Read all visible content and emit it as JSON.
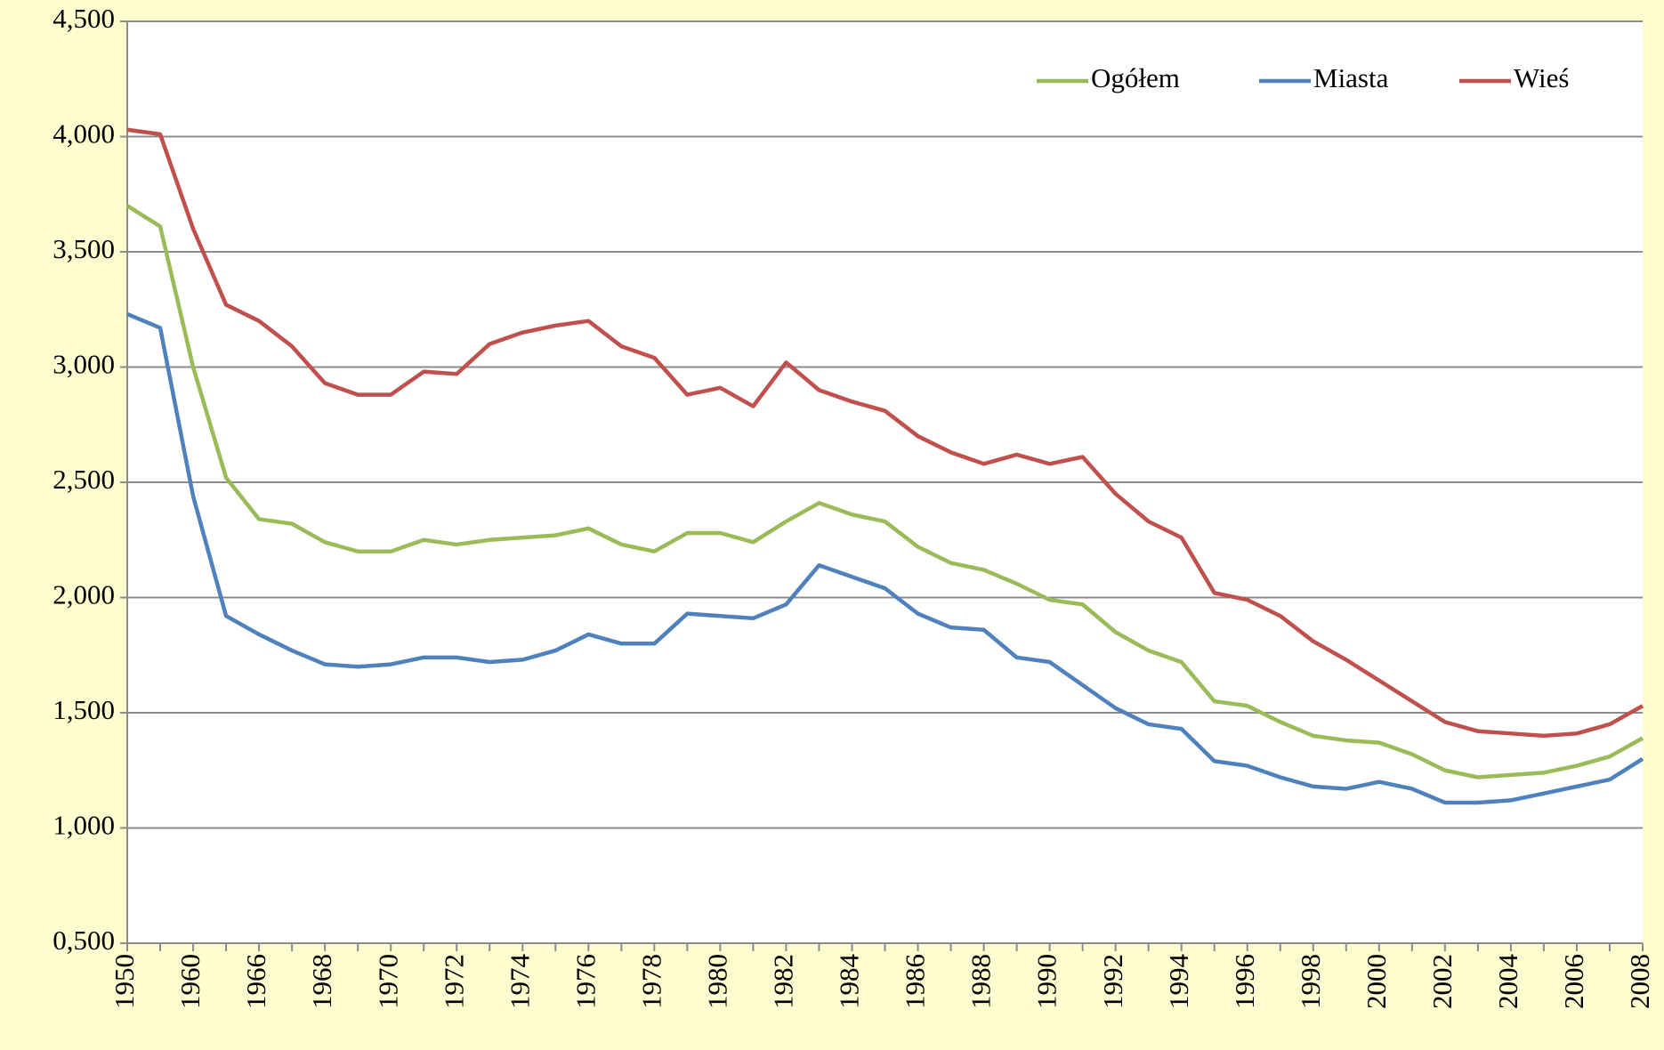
{
  "chart_data": {
    "type": "line",
    "categories": [
      "1950",
      null,
      "1960",
      null,
      "1966",
      null,
      "1968",
      null,
      "1970",
      null,
      "1972",
      null,
      "1974",
      null,
      "1976",
      null,
      "1978",
      null,
      "1980",
      null,
      "1982",
      null,
      "1984",
      null,
      "1986",
      null,
      "1988",
      null,
      "1990",
      null,
      "1992",
      null,
      "1994",
      null,
      "1996",
      null,
      "1998",
      null,
      "2000",
      null,
      "2002",
      null,
      "2004",
      null,
      "2006",
      null,
      "2008"
    ],
    "series": [
      {
        "name": "Ogółem",
        "color": "#9bbb59",
        "values": [
          3.7,
          3.61,
          3.0,
          2.52,
          2.34,
          2.32,
          2.24,
          2.2,
          2.2,
          2.25,
          2.23,
          2.25,
          2.26,
          2.27,
          2.3,
          2.23,
          2.2,
          2.28,
          2.28,
          2.24,
          2.33,
          2.41,
          2.36,
          2.33,
          2.22,
          2.15,
          2.12,
          2.06,
          1.99,
          1.97,
          1.85,
          1.77,
          1.72,
          1.55,
          1.53,
          1.46,
          1.4,
          1.38,
          1.37,
          1.32,
          1.25,
          1.22,
          1.23,
          1.24,
          1.27,
          1.31,
          1.39
        ]
      },
      {
        "name": "Miasta",
        "color": "#4f81bd",
        "values": [
          3.23,
          3.17,
          2.44,
          1.92,
          1.84,
          1.77,
          1.71,
          1.7,
          1.71,
          1.74,
          1.74,
          1.72,
          1.73,
          1.77,
          1.84,
          1.8,
          1.8,
          1.93,
          1.92,
          1.91,
          1.97,
          2.14,
          2.09,
          2.04,
          1.93,
          1.87,
          1.86,
          1.74,
          1.72,
          1.62,
          1.52,
          1.45,
          1.43,
          1.29,
          1.27,
          1.22,
          1.18,
          1.17,
          1.2,
          1.17,
          1.11,
          1.11,
          1.12,
          1.15,
          1.18,
          1.21,
          1.3
        ]
      },
      {
        "name": "Wieś",
        "color": "#c0504d",
        "values": [
          4.03,
          4.01,
          3.6,
          3.27,
          3.2,
          3.09,
          2.93,
          2.88,
          2.88,
          2.98,
          2.97,
          3.1,
          3.15,
          3.18,
          3.2,
          3.09,
          3.04,
          2.88,
          2.91,
          2.83,
          3.02,
          2.9,
          2.85,
          2.81,
          2.7,
          2.63,
          2.58,
          2.62,
          2.58,
          2.61,
          2.45,
          2.33,
          2.26,
          2.02,
          1.99,
          1.92,
          1.81,
          1.73,
          1.64,
          1.55,
          1.46,
          1.42,
          1.41,
          1.4,
          1.41,
          1.45,
          1.53
        ]
      }
    ],
    "ylim": [
      0.5,
      4.5
    ],
    "yticks": [
      {
        "value": 0.5,
        "label": "0,500"
      },
      {
        "value": 1,
        "label": "1,000"
      },
      {
        "value": 1.5,
        "label": "1,500"
      },
      {
        "value": 2,
        "label": "2,000"
      },
      {
        "value": 2.5,
        "label": "2,500"
      },
      {
        "value": 3,
        "label": "3,000"
      },
      {
        "value": 3.5,
        "label": "3,500"
      },
      {
        "value": 4,
        "label": "4,000"
      },
      {
        "value": 4.5,
        "label": "4,500"
      }
    ],
    "grid": true,
    "legend": "top-right"
  }
}
